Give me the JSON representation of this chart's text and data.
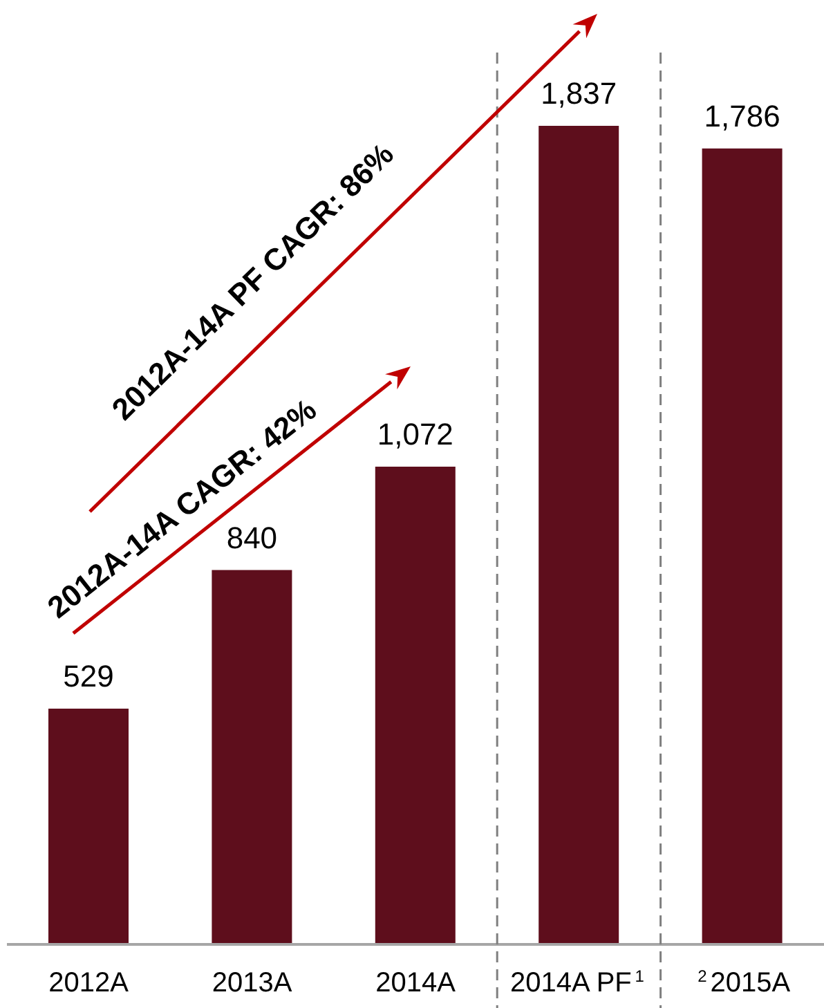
{
  "chart_data": {
    "type": "bar",
    "categories": [
      "2012A",
      "2013A",
      "2014A",
      "2014A PF$^{1}$",
      "$^{2}$2015A"
    ],
    "values": [
      529,
      840,
      1072,
      1837,
      1786
    ],
    "color": "#5e0e1c",
    "value_labels": [
      "529",
      "840",
      "1,072",
      "1,837",
      "1,786"
    ],
    "annotations": [
      "2012A-14A PF CAGR: 86%",
      "2012A-14A CAGR: 42%"
    ]
  }
}
